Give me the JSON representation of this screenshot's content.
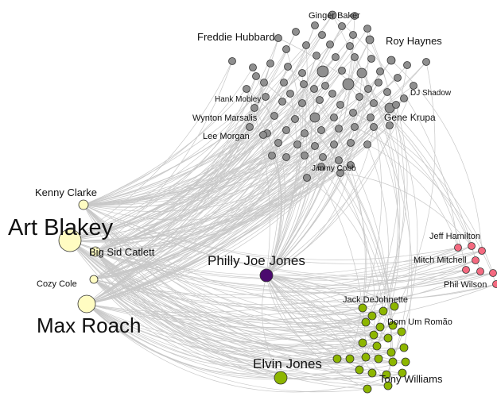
{
  "colors": {
    "gray_cluster": "#8f8f8f",
    "yellow_cluster": "#fffcc2",
    "green_cluster": "#8db600",
    "pink_cluster": "#f46a80",
    "hub": "#4b0a6e",
    "edge": "#c8c8c8"
  },
  "labels": {
    "art_blakey": "Art Blakey",
    "max_roach": "Max Roach",
    "kenny_clarke": "Kenny Clarke",
    "big_sid_catlett": "Big Sid Catlett",
    "cozy_cole": "Cozy Cole",
    "philly_joe_jones": "Philly Joe Jones",
    "elvin_jones": "Elvin Jones",
    "tony_williams": "Tony Williams",
    "jack_dejohnette": "Jack DeJohnette",
    "dom_um_romao": "Dom Um Romão",
    "jeff_hamilton": "Jeff Hamilton",
    "mitch_mitchell": "Mitch Mitchell",
    "phil_wilson": "Phil Wilson",
    "ginger_baker": "Ginger Baker",
    "freddie_hubbard": "Freddie Hubbard",
    "roy_haynes": "Roy Haynes",
    "dj_shadow": "DJ Shadow",
    "hank_mobley": "Hank Mobley",
    "wynton_marsalis": "Wynton Marsalis",
    "gene_krupa": "Gene Krupa",
    "lee_morgan": "Lee Morgan",
    "jimmy_cobb": "Jimmy Cobb"
  }
}
